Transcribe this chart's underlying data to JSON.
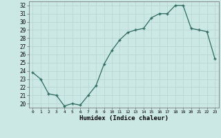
{
  "x": [
    0,
    1,
    2,
    3,
    4,
    5,
    6,
    7,
    8,
    9,
    10,
    11,
    12,
    13,
    14,
    15,
    16,
    17,
    18,
    19,
    20,
    21,
    22,
    23
  ],
  "y": [
    23.8,
    23.0,
    21.2,
    21.0,
    19.7,
    20.0,
    19.8,
    21.0,
    22.2,
    24.8,
    26.5,
    27.8,
    28.7,
    29.0,
    29.2,
    30.5,
    31.0,
    31.0,
    32.0,
    32.0,
    29.2,
    29.0,
    28.8,
    25.5
  ],
  "line_color": "#2e6b5e",
  "marker": "+",
  "marker_size": 3,
  "bg_color": "#cce8e4",
  "grid_color": "#b8d8d4",
  "xlabel": "Humidex (Indice chaleur)",
  "ylabel_ticks": [
    20,
    21,
    22,
    23,
    24,
    25,
    26,
    27,
    28,
    29,
    30,
    31,
    32
  ],
  "xlim": [
    -0.5,
    23.5
  ],
  "ylim": [
    19.5,
    32.5
  ],
  "title": ""
}
